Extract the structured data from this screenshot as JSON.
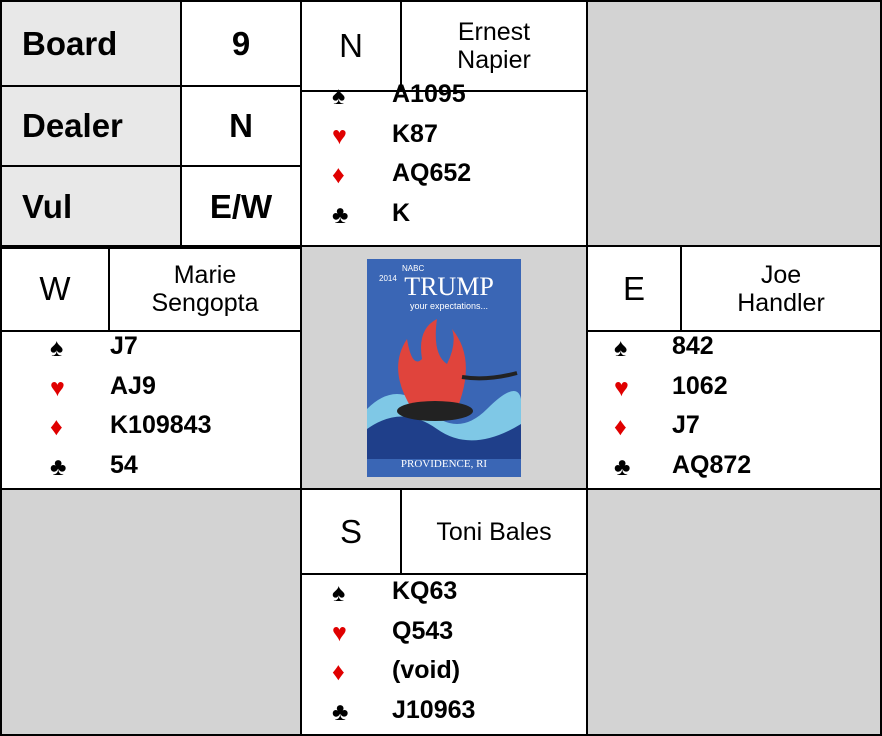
{
  "board": {
    "rows": [
      [
        "Board",
        "9"
      ],
      [
        "Dealer",
        "N"
      ],
      [
        "Vul",
        "E/W"
      ]
    ]
  },
  "suits": [
    {
      "symbol": "♠",
      "color": "#000000"
    },
    {
      "symbol": "♥",
      "color": "#e00000"
    },
    {
      "symbol": "♦",
      "color": "#e00000"
    },
    {
      "symbol": "♣",
      "color": "#000000"
    }
  ],
  "hands": {
    "north": {
      "seat": "N",
      "player": "Ernest Napier",
      "cards": [
        "A1095",
        "K87",
        "AQ652",
        "K"
      ]
    },
    "west": {
      "seat": "W",
      "player": "Marie Sengopta",
      "cards": [
        "J7",
        "AJ9",
        "K109843",
        "54"
      ]
    },
    "east": {
      "seat": "E",
      "player": "Joe Handler",
      "cards": [
        "842",
        "1062",
        "J7",
        "AQ872"
      ]
    },
    "south": {
      "seat": "S",
      "player": "Toni Bales",
      "cards": [
        "KQ63",
        "Q543",
        "(void)",
        "J10963"
      ]
    }
  },
  "logo": {
    "year": "2014",
    "event": "NABC",
    "title": "TRUMP",
    "tagline": "your expectations...",
    "place": "PROVIDENCE, RI"
  }
}
